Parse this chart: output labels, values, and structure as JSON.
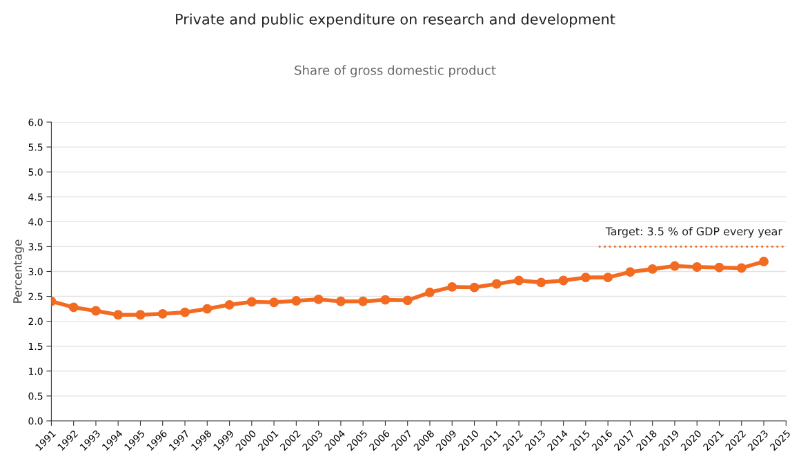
{
  "chart_data": {
    "type": "line",
    "title": "Private and public expenditure on research and development",
    "subtitle": "Share of gross domestic product",
    "ylabel": "Percentage",
    "categories": [
      "1991",
      "1992",
      "1993",
      "1994",
      "1995",
      "1996",
      "1997",
      "1998",
      "1999",
      "2000",
      "2001",
      "2002",
      "2003",
      "2004",
      "2005",
      "2006",
      "2007",
      "2008",
      "2009",
      "2010",
      "2011",
      "2012",
      "2013",
      "2014",
      "2015",
      "2016",
      "2017",
      "2018",
      "2019",
      "2020",
      "2021",
      "2022",
      "2023",
      "2025"
    ],
    "series": [
      {
        "color": "#f26b21",
        "values": [
          2.4,
          2.28,
          2.21,
          2.13,
          2.13,
          2.15,
          2.18,
          2.25,
          2.33,
          2.39,
          2.38,
          2.41,
          2.44,
          2.4,
          2.4,
          2.43,
          2.42,
          2.58,
          2.69,
          2.68,
          2.75,
          2.82,
          2.78,
          2.82,
          2.88,
          2.88,
          2.99,
          3.05,
          3.11,
          3.09,
          3.08,
          3.07,
          3.2,
          null
        ]
      }
    ],
    "ylim": [
      0,
      6
    ],
    "yticks": [
      {
        "value": 0,
        "label": "0.0"
      },
      {
        "value": 0.5,
        "label": "0.5"
      },
      {
        "value": 1,
        "label": "1.0"
      },
      {
        "value": 1.5,
        "label": "1.5"
      },
      {
        "value": 2,
        "label": "2.0"
      },
      {
        "value": 2.5,
        "label": "2.5"
      },
      {
        "value": 3,
        "label": "3.0"
      },
      {
        "value": 3.5,
        "label": "3.5"
      },
      {
        "value": 4,
        "label": "4.0"
      },
      {
        "value": 4.5,
        "label": "4.5"
      },
      {
        "value": 5,
        "label": "5.0"
      },
      {
        "value": 5.5,
        "label": "5.5"
      },
      {
        "value": 6,
        "label": "6.0"
      }
    ],
    "ref_lines": [
      {
        "axis": "y",
        "value": 3.5,
        "label": "Target: 3.5 % of GDP every year",
        "color": "#f26b21",
        "line_style": "dotted"
      }
    ],
    "grid": "y",
    "legend": false,
    "marker": "circle",
    "line_style": "solid"
  }
}
